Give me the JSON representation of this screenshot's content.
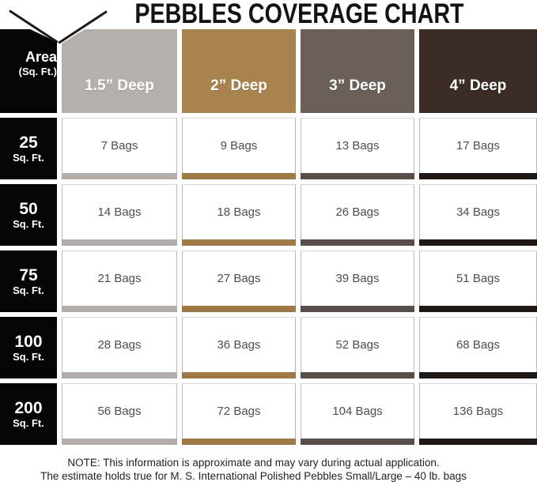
{
  "title": "PEBBLES COVERAGE CHART",
  "table": {
    "area_header": {
      "line1": "Area",
      "line2": "(Sq. Ft.)"
    },
    "columns": [
      {
        "label": "1.5” Deep",
        "color": "#b5b0ac",
        "strip_color": "#b2adaa"
      },
      {
        "label": "2” Deep",
        "color": "#a8834e",
        "strip_color": "#a07a46"
      },
      {
        "label": "3” Deep",
        "color": "#6b5f5a",
        "strip_color": "#584d49"
      },
      {
        "label": "4” Deep",
        "color": "#3b2d26",
        "strip_color": "#1f1815"
      }
    ],
    "rows": [
      {
        "area": "25",
        "unit": "Sq. Ft.",
        "values": [
          "7 Bags",
          "9 Bags",
          "13 Bags",
          "17 Bags"
        ]
      },
      {
        "area": "50",
        "unit": "Sq. Ft.",
        "values": [
          "14 Bags",
          "18 Bags",
          "26 Bags",
          "34 Bags"
        ]
      },
      {
        "area": "75",
        "unit": "Sq. Ft.",
        "values": [
          "21 Bags",
          "27 Bags",
          "39 Bags",
          "51 Bags"
        ]
      },
      {
        "area": "100",
        "unit": "Sq. Ft.",
        "values": [
          "28 Bags",
          "36 Bags",
          "52 Bags",
          "68 Bags"
        ]
      },
      {
        "area": "200",
        "unit": "Sq. Ft.",
        "values": [
          "56 Bags",
          "72 Bags",
          "104 Bags",
          "136 Bags"
        ]
      }
    ]
  },
  "note": {
    "line1": "NOTE: This information is approximate and may vary during actual application.",
    "line2": "The estimate holds true for M. S. International Polished Pebbles Small/Large – 40 lb. bags"
  },
  "colors": {
    "header_area_bg": "#050505",
    "title_text": "#131313",
    "cell_text": "#4e4e4e",
    "cell_border": "#bcb9b6",
    "note_text": "#222222"
  },
  "chart_data": {
    "type": "table",
    "title": "PEBBLES COVERAGE CHART",
    "columns": [
      "Area (Sq. Ft.)",
      "1.5” Deep",
      "2” Deep",
      "3” Deep",
      "4” Deep"
    ],
    "rows": [
      [
        "25",
        "7 Bags",
        "9 Bags",
        "13 Bags",
        "17 Bags"
      ],
      [
        "50",
        "14 Bags",
        "18 Bags",
        "26 Bags",
        "34 Bags"
      ],
      [
        "75",
        "21 Bags",
        "27 Bags",
        "39 Bags",
        "51 Bags"
      ],
      [
        "100",
        "28 Bags",
        "36 Bags",
        "52 Bags",
        "68 Bags"
      ],
      [
        "200",
        "56 Bags",
        "72 Bags",
        "104 Bags",
        "136 Bags"
      ]
    ],
    "note": "NOTE: This information is approximate and may vary during actual application. The estimate holds true for M. S. International Polished Pebbles Small/Large – 40 lb. bags"
  }
}
